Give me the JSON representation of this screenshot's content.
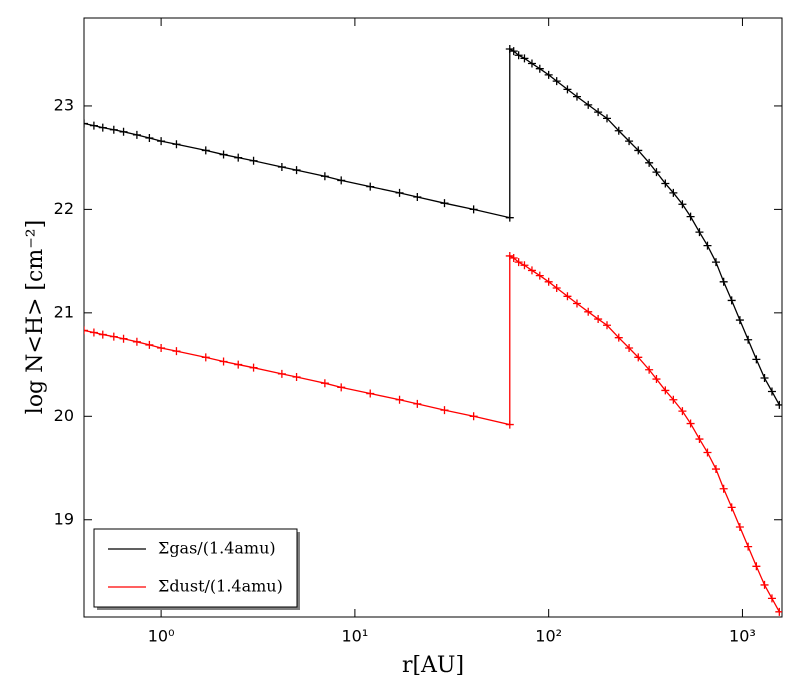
{
  "chart_data": {
    "type": "line",
    "xlabel": "r[AU]",
    "ylabel": "log N<H> [cm⁻²]",
    "x": [
      0.4,
      0.45,
      0.5,
      0.57,
      0.64,
      0.75,
      0.87,
      1.0,
      1.2,
      1.7,
      2.1,
      2.5,
      3.0,
      4.2,
      5.0,
      7.0,
      8.5,
      12,
      17,
      21,
      29,
      41,
      63,
      63,
      66,
      70,
      75,
      82,
      90,
      100,
      110,
      125,
      140,
      160,
      180,
      200,
      230,
      260,
      290,
      330,
      360,
      400,
      440,
      490,
      540,
      600,
      660,
      730,
      800,
      880,
      970,
      1070,
      1180,
      1300,
      1420,
      1550
    ],
    "series": [
      {
        "name": "Σgas/(1.4amu)",
        "color": "#000000",
        "values": [
          22.83,
          22.81,
          22.79,
          22.77,
          22.75,
          22.72,
          22.69,
          22.66,
          22.63,
          22.57,
          22.53,
          22.5,
          22.47,
          22.41,
          22.38,
          22.32,
          22.28,
          22.22,
          22.16,
          22.12,
          22.06,
          22.0,
          21.92,
          23.55,
          23.53,
          23.49,
          23.46,
          23.41,
          23.36,
          23.3,
          23.24,
          23.16,
          23.09,
          23.01,
          22.94,
          22.88,
          22.76,
          22.66,
          22.57,
          22.45,
          22.36,
          22.25,
          22.16,
          22.05,
          21.93,
          21.78,
          21.65,
          21.49,
          21.3,
          21.12,
          20.93,
          20.74,
          20.55,
          20.37,
          20.24,
          20.11
        ]
      },
      {
        "name": "Σdust/(1.4amu)",
        "color": "#ff0000",
        "values": [
          20.83,
          20.81,
          20.79,
          20.77,
          20.75,
          20.72,
          20.69,
          20.66,
          20.63,
          20.57,
          20.53,
          20.5,
          20.47,
          20.41,
          20.38,
          20.32,
          20.28,
          20.22,
          20.16,
          20.12,
          20.06,
          20.0,
          19.92,
          21.55,
          21.53,
          21.49,
          21.46,
          21.41,
          21.36,
          21.3,
          21.24,
          21.16,
          21.09,
          21.01,
          20.94,
          20.88,
          20.76,
          20.66,
          20.57,
          20.45,
          20.36,
          20.25,
          20.16,
          20.05,
          19.93,
          19.78,
          19.65,
          19.49,
          19.3,
          19.12,
          18.93,
          18.74,
          18.55,
          18.37,
          18.24,
          18.11
        ]
      }
    ],
    "xlim": [
      0.4,
      1600
    ],
    "xscale": "log",
    "xticks": [
      {
        "value": 1,
        "label": "10⁰"
      },
      {
        "value": 10,
        "label": "10¹"
      },
      {
        "value": 100,
        "label": "10²"
      },
      {
        "value": 1000,
        "label": "10³"
      }
    ],
    "ylim": [
      18.06,
      23.85
    ],
    "yticks": [
      19,
      20,
      21,
      22,
      23
    ],
    "grid": false,
    "legend": "lower left"
  }
}
